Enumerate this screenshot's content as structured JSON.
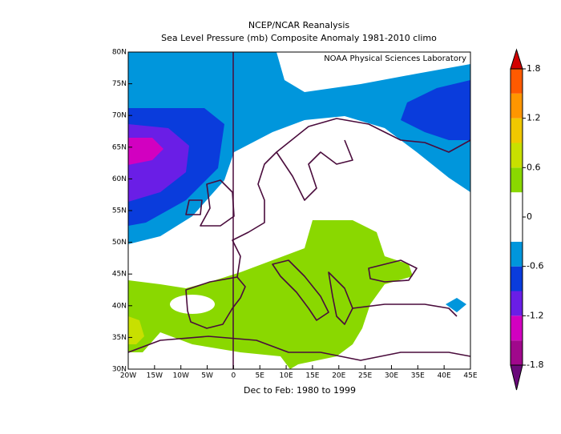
{
  "chart_data": {
    "type": "contour",
    "title": "NCEP/NCAR Reanalysis",
    "subtitle": "Sea Level Pressure (mb) Composite Anomaly 1981-2010 climo",
    "annotation": "NOAA Physical Sciences Laboratory",
    "xlabel": "Dec to Feb: 1980 to 1999",
    "xlim": [
      -20,
      45
    ],
    "ylim": [
      30,
      80
    ],
    "xticks": [
      {
        "value": -20,
        "label": "20W"
      },
      {
        "value": -15,
        "label": "15W"
      },
      {
        "value": -10,
        "label": "10W"
      },
      {
        "value": -5,
        "label": "5W"
      },
      0,
      {
        "value": 5,
        "label": "5E"
      },
      {
        "value": 10,
        "label": "10E"
      },
      {
        "value": 15,
        "label": "15E"
      },
      {
        "value": 20,
        "label": "20E"
      },
      {
        "value": 25,
        "label": "25E"
      },
      {
        "value": 30,
        "label": "30E"
      },
      {
        "value": 35,
        "label": "35E"
      },
      {
        "value": 40,
        "label": "40E"
      },
      {
        "value": 45,
        "label": "45E"
      }
    ],
    "yticks": [
      {
        "value": 30,
        "label": "30N"
      },
      {
        "value": 35,
        "label": "35N"
      },
      {
        "value": 40,
        "label": "40N"
      },
      {
        "value": 45,
        "label": "45N"
      },
      {
        "value": 50,
        "label": "50N"
      },
      {
        "value": 55,
        "label": "55N"
      },
      {
        "value": 60,
        "label": "60N"
      },
      {
        "value": 65,
        "label": "65N"
      },
      {
        "value": 70,
        "label": "70N"
      },
      {
        "value": 75,
        "label": "75N"
      },
      {
        "value": 80,
        "label": "80N"
      }
    ],
    "colorbar": {
      "levels": [
        -1.8,
        -1.5,
        -1.2,
        -0.9,
        -0.6,
        -0.3,
        0,
        0.3,
        0.6,
        0.9,
        1.2,
        1.5,
        1.8
      ],
      "colors": [
        "#6a0a7a",
        "#a0088c",
        "#d200c0",
        "#6a1ee6",
        "#0a3cdc",
        "#0096dc",
        "#ffffff",
        "#ffffff",
        "#8ad800",
        "#c8e000",
        "#f0c800",
        "#ff9600",
        "#ff5a00",
        "#d20000"
      ],
      "ticks": [
        -1.8,
        -1.2,
        -0.6,
        0,
        0.6,
        1.2,
        1.8
      ]
    }
  }
}
